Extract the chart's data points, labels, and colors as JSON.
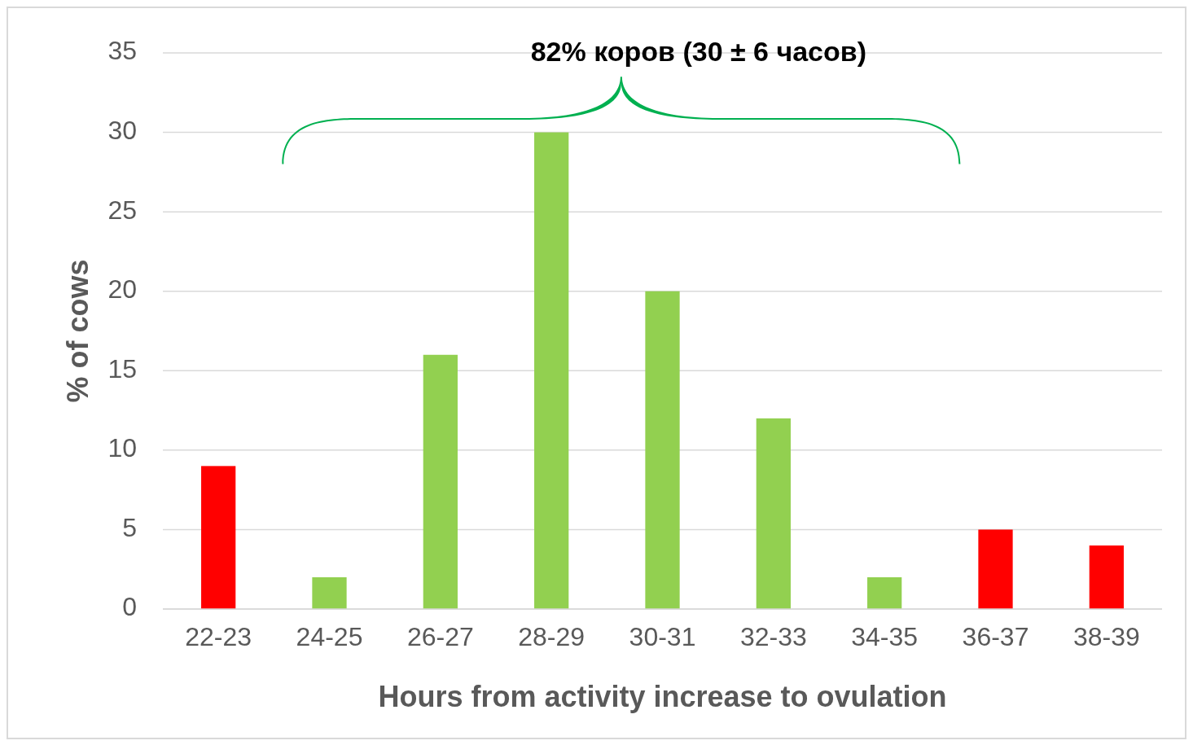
{
  "chart_data": {
    "type": "bar",
    "title": "82% коров (30 ± 6 часов)",
    "xlabel": "Hours from activity increase to ovulation",
    "ylabel": "% of cows",
    "categories": [
      "22-23",
      "24-25",
      "26-27",
      "28-29",
      "30-31",
      "32-33",
      "34-35",
      "36-37",
      "38-39"
    ],
    "values": [
      9,
      2,
      16,
      30,
      20,
      12,
      2,
      5,
      4
    ],
    "colors": [
      "#ff0000",
      "#92d050",
      "#92d050",
      "#92d050",
      "#92d050",
      "#92d050",
      "#92d050",
      "#ff0000",
      "#ff0000"
    ],
    "ylim": [
      0,
      35
    ],
    "yticks": [
      0,
      5,
      10,
      15,
      20,
      25,
      30,
      35
    ],
    "grid": "y"
  }
}
